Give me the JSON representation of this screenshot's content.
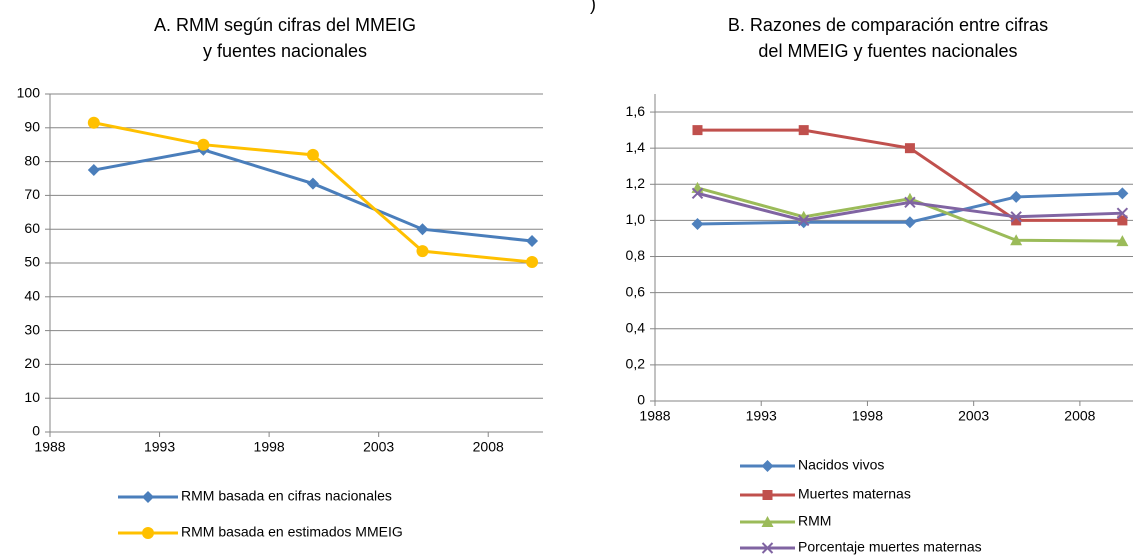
{
  "chart_data": [
    {
      "type": "line",
      "title": [
        "A. RMM según cifras del MMEIG",
        "y fuentes nacionales"
      ],
      "x": [
        1990,
        1995,
        2000,
        2005,
        2010
      ],
      "xlim": [
        1988,
        2010.5
      ],
      "xticks": [
        1988,
        1993,
        1998,
        2003,
        2008
      ],
      "ylim": [
        0,
        100
      ],
      "yticks": [
        0,
        10,
        20,
        30,
        40,
        50,
        60,
        70,
        80,
        90,
        100
      ],
      "grid": true,
      "legend": "bottom",
      "series": [
        {
          "name": "RMM basada en cifras nacionales",
          "color": "#4a7ebb",
          "marker": "diamond",
          "values": [
            77.5,
            83.5,
            73.5,
            60,
            56.5
          ]
        },
        {
          "name": "RMM basada en estimados MMEIG",
          "color": "#ffc000",
          "marker": "circle",
          "values": [
            91.5,
            85,
            82,
            53.5,
            50.3
          ]
        }
      ]
    },
    {
      "type": "line",
      "annotation": ")",
      "title": [
        "B. Razones de comparación entre cifras",
        "del MMEIG y fuentes nacionales"
      ],
      "x": [
        1990,
        1995,
        2000,
        2005,
        2010
      ],
      "xlim": [
        1988,
        2010.5
      ],
      "xticks": [
        1988,
        1993,
        1998,
        2003,
        2008
      ],
      "ylim": [
        0,
        1.7
      ],
      "yticks": [
        0,
        {
          "value": 0.2,
          "label": "0,2"
        },
        {
          "value": 0.4,
          "label": "0,4"
        },
        {
          "value": 0.6,
          "label": "0,6"
        },
        {
          "value": 0.8,
          "label": "0,8"
        },
        {
          "value": 1.0,
          "label": "1,0"
        },
        {
          "value": 1.2,
          "label": "1,2"
        },
        {
          "value": 1.4,
          "label": "1,4"
        },
        {
          "value": 1.6,
          "label": "1,6"
        }
      ],
      "grid": true,
      "legend": "bottom",
      "series": [
        {
          "name": "Nacidos vivos",
          "color": "#4f81bd",
          "marker": "diamond",
          "values": [
            0.98,
            0.99,
            0.99,
            1.13,
            1.15
          ]
        },
        {
          "name": "Muertes maternas",
          "color": "#c0504d",
          "marker": "square",
          "values": [
            1.5,
            1.5,
            1.4,
            1.0,
            1.0
          ]
        },
        {
          "name": "RMM",
          "color": "#9bbb59",
          "marker": "triangle",
          "values": [
            1.18,
            1.02,
            1.12,
            0.89,
            0.885
          ]
        },
        {
          "name": "Porcentaje muertes maternas",
          "color": "#8064a2",
          "marker": "x",
          "values": [
            1.15,
            1.0,
            1.1,
            1.02,
            1.04
          ]
        }
      ]
    }
  ]
}
